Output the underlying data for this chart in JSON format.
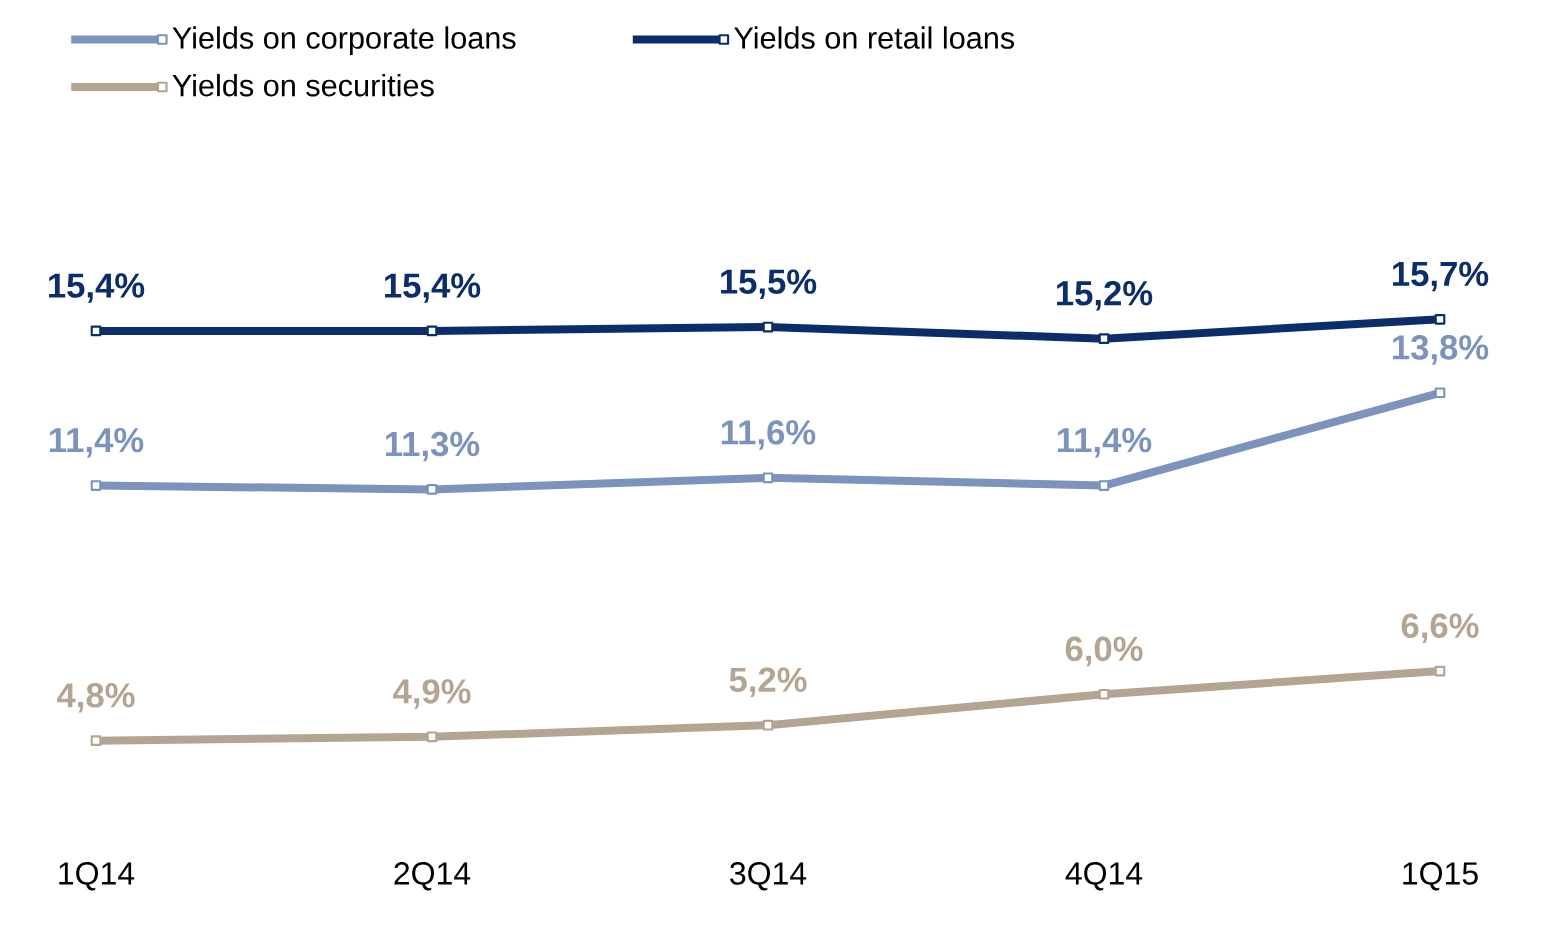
{
  "chart_data": {
    "type": "line",
    "categories": [
      "1Q14",
      "2Q14",
      "3Q14",
      "4Q14",
      "1Q15"
    ],
    "series": [
      {
        "name": "Yields on corporate loans",
        "color": "#7b93bd",
        "values": [
          11.4,
          11.3,
          11.6,
          11.4,
          13.8
        ],
        "value_labels": [
          "11,4%",
          "11,3%",
          "11,6%",
          "11,4%",
          "13,8%"
        ]
      },
      {
        "name": "Yields on retail loans",
        "color": "#0b2d69",
        "values": [
          15.4,
          15.4,
          15.5,
          15.2,
          15.7
        ],
        "value_labels": [
          "15,4%",
          "15,4%",
          "15,5%",
          "15,2%",
          "15,7%"
        ]
      },
      {
        "name": "Yields on securities",
        "color": "#b3a592",
        "values": [
          4.8,
          4.9,
          5.2,
          6.0,
          6.6
        ],
        "value_labels": [
          "4,8%",
          "4,9%",
          "5,2%",
          "6,0%",
          "6,6%"
        ]
      }
    ],
    "legend": "top left",
    "marker": "square",
    "line_style": "solid",
    "grid": false
  }
}
